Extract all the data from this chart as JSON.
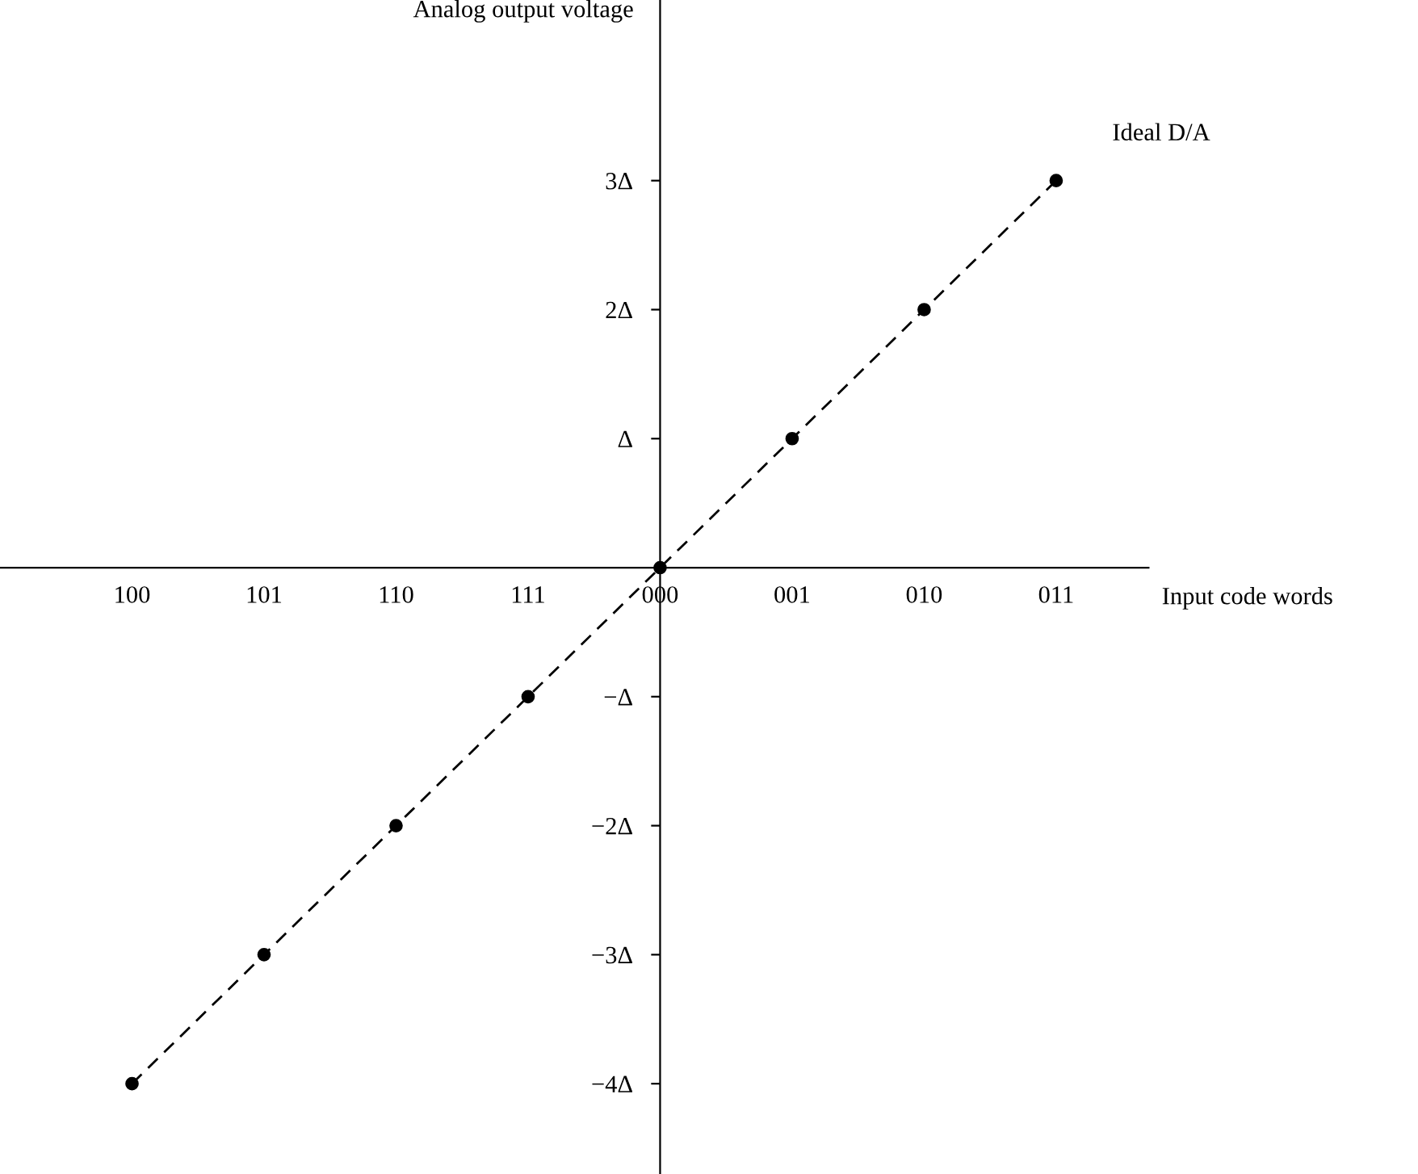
{
  "chart_data": {
    "type": "line",
    "xlabel": "Input code words",
    "ylabel": "Analog output voltage",
    "categories": [
      "100",
      "101",
      "110",
      "111",
      "000",
      "001",
      "010",
      "011"
    ],
    "series": [
      {
        "name": "Ideal D/A",
        "color": "#000000",
        "values": [
          -4,
          -3,
          -2,
          -1,
          0,
          1,
          2,
          3
        ]
      }
    ],
    "ylim": [
      -4.7,
      4.4
    ],
    "yticks": [
      {
        "value": -4,
        "label": "−4Δ"
      },
      {
        "value": -3,
        "label": "−3Δ"
      },
      {
        "value": -2,
        "label": "−2Δ"
      },
      {
        "value": -1,
        "label": "−Δ"
      },
      {
        "value": 1,
        "label": "Δ"
      },
      {
        "value": 2,
        "label": "2Δ"
      },
      {
        "value": 3,
        "label": "3Δ"
      }
    ],
    "marker": "circle",
    "line_style": "dashed",
    "grid": false,
    "legend": false
  }
}
